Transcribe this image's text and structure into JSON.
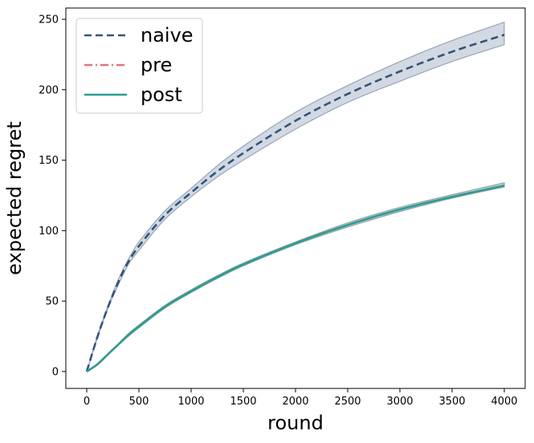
{
  "chart_data": {
    "type": "line",
    "xlabel": "round",
    "ylabel": "expected regret",
    "xlim": [
      -200,
      4200
    ],
    "ylim": [
      -12,
      258
    ],
    "xticks": [
      0,
      500,
      1000,
      1500,
      2000,
      2500,
      3000,
      3500,
      4000
    ],
    "yticks": [
      0,
      50,
      100,
      150,
      200,
      250
    ],
    "grid": false,
    "legend_position": "top-left",
    "x": [
      0,
      100,
      200,
      300,
      400,
      500,
      750,
      1000,
      1250,
      1500,
      2000,
      2500,
      3000,
      3500,
      4000
    ],
    "series": [
      {
        "name": "naive",
        "color": "#34547a",
        "style": "dashed",
        "values": [
          0,
          24,
          45,
          63,
          78,
          89,
          111,
          127,
          142,
          155,
          178,
          197,
          213,
          227,
          239
        ],
        "lower": [
          0,
          23,
          44,
          61,
          76,
          86,
          108,
          124,
          138,
          150,
          172,
          191,
          206,
          220,
          232
        ],
        "upper": [
          0,
          25,
          46,
          65,
          80,
          92,
          114,
          130,
          146,
          160,
          184,
          203,
          220,
          235,
          248
        ]
      },
      {
        "name": "pre",
        "color": "#e8707c",
        "style": "dashdot",
        "values": [
          0,
          5,
          12,
          19,
          26,
          32,
          46,
          57,
          67,
          76,
          91,
          104,
          115,
          124,
          132
        ],
        "lower": [
          0,
          4.5,
          11.5,
          18.5,
          25,
          31,
          45,
          56,
          66,
          75,
          90,
          102.5,
          113.5,
          123,
          131
        ],
        "upper": [
          0,
          5.5,
          12.5,
          19.5,
          27,
          33,
          47,
          58,
          68,
          77,
          92,
          105.5,
          116.5,
          125.5,
          134
        ]
      },
      {
        "name": "post",
        "color": "#2a9d94",
        "style": "solid",
        "values": [
          0,
          5,
          12,
          19,
          26,
          32,
          46,
          57,
          67,
          76,
          91,
          104,
          115,
          124,
          132
        ],
        "lower": [
          0,
          4.5,
          11.5,
          18.5,
          25,
          31,
          45,
          56,
          66,
          75,
          90,
          102.5,
          113.5,
          123,
          131
        ],
        "upper": [
          0,
          5.5,
          12.5,
          19.5,
          27,
          33,
          47,
          58,
          68,
          77,
          92,
          105.5,
          116.5,
          125.5,
          134
        ]
      }
    ]
  }
}
